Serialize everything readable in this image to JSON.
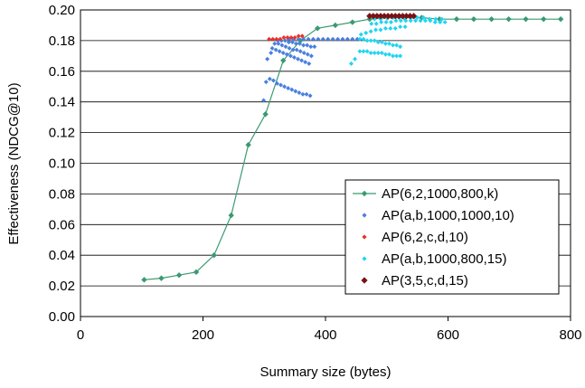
{
  "chart_data": {
    "type": "scatter",
    "xlabel": "Summary size (bytes)",
    "ylabel": "Effectiveness (NDCG@10)",
    "xlim": [
      0,
      800
    ],
    "ylim": [
      0.0,
      0.2
    ],
    "x_ticks": [
      "0",
      "200",
      "400",
      "600",
      "800"
    ],
    "y_ticks": [
      "0.00",
      "0.02",
      "0.04",
      "0.06",
      "0.08",
      "0.10",
      "0.12",
      "0.14",
      "0.16",
      "0.18",
      "0.20"
    ],
    "grid": "horizontal",
    "legend_position": "bottom-right",
    "series": [
      {
        "name": "AP(6,2,1000,800,k)",
        "mark": "line-diamond",
        "color": "#3a9a72",
        "points": [
          [
            104,
            0.024
          ],
          [
            132,
            0.025
          ],
          [
            161,
            0.027
          ],
          [
            189,
            0.029
          ],
          [
            218,
            0.04
          ],
          [
            246,
            0.066
          ],
          [
            274,
            0.112
          ],
          [
            302,
            0.132
          ],
          [
            331,
            0.167
          ],
          [
            359,
            0.18
          ],
          [
            387,
            0.188
          ],
          [
            416,
            0.19
          ],
          [
            444,
            0.192
          ],
          [
            472,
            0.194
          ],
          [
            501,
            0.195
          ],
          [
            529,
            0.195
          ],
          [
            557,
            0.195
          ],
          [
            586,
            0.194
          ],
          [
            614,
            0.194
          ],
          [
            642,
            0.194
          ],
          [
            671,
            0.194
          ],
          [
            699,
            0.194
          ],
          [
            727,
            0.194
          ],
          [
            756,
            0.194
          ],
          [
            784,
            0.194
          ]
        ]
      },
      {
        "name": "AP(a,b,1000,1000,10)",
        "mark": "diamond",
        "color": "#4a7fe0",
        "points": [
          [
            299,
            0.141
          ],
          [
            303,
            0.153
          ],
          [
            309,
            0.155
          ],
          [
            315,
            0.154
          ],
          [
            321,
            0.152
          ],
          [
            327,
            0.151
          ],
          [
            333,
            0.15
          ],
          [
            339,
            0.149
          ],
          [
            345,
            0.148
          ],
          [
            351,
            0.147
          ],
          [
            357,
            0.146
          ],
          [
            363,
            0.145
          ],
          [
            369,
            0.145
          ],
          [
            375,
            0.144
          ],
          [
            305,
            0.168
          ],
          [
            313,
            0.175
          ],
          [
            319,
            0.174
          ],
          [
            325,
            0.173
          ],
          [
            331,
            0.172
          ],
          [
            337,
            0.171
          ],
          [
            343,
            0.17
          ],
          [
            349,
            0.169
          ],
          [
            355,
            0.168
          ],
          [
            361,
            0.167
          ],
          [
            367,
            0.166
          ],
          [
            373,
            0.165
          ],
          [
            311,
            0.172
          ],
          [
            317,
            0.178
          ],
          [
            323,
            0.178
          ],
          [
            329,
            0.177
          ],
          [
            335,
            0.176
          ],
          [
            341,
            0.175
          ],
          [
            347,
            0.174
          ],
          [
            353,
            0.174
          ],
          [
            359,
            0.173
          ],
          [
            365,
            0.172
          ],
          [
            371,
            0.171
          ],
          [
            377,
            0.17
          ],
          [
            322,
            0.18
          ],
          [
            328,
            0.18
          ],
          [
            334,
            0.18
          ],
          [
            340,
            0.179
          ],
          [
            346,
            0.179
          ],
          [
            352,
            0.178
          ],
          [
            358,
            0.178
          ],
          [
            364,
            0.177
          ],
          [
            370,
            0.177
          ],
          [
            376,
            0.176
          ],
          [
            382,
            0.176
          ],
          [
            340,
            0.181
          ],
          [
            348,
            0.181
          ],
          [
            356,
            0.181
          ],
          [
            364,
            0.181
          ],
          [
            372,
            0.181
          ],
          [
            380,
            0.181
          ],
          [
            388,
            0.181
          ],
          [
            396,
            0.181
          ],
          [
            404,
            0.181
          ],
          [
            412,
            0.181
          ],
          [
            420,
            0.181
          ],
          [
            428,
            0.181
          ],
          [
            436,
            0.181
          ],
          [
            444,
            0.181
          ],
          [
            452,
            0.181
          ]
        ]
      },
      {
        "name": "AP(6,2,c,d,10)",
        "mark": "diamond",
        "color": "#e8332a",
        "points": [
          [
            308,
            0.181
          ],
          [
            314,
            0.181
          ],
          [
            320,
            0.181
          ],
          [
            326,
            0.181
          ],
          [
            332,
            0.182
          ],
          [
            338,
            0.182
          ],
          [
            344,
            0.182
          ],
          [
            350,
            0.182
          ],
          [
            356,
            0.183
          ],
          [
            362,
            0.183
          ]
        ]
      },
      {
        "name": "AP(a,b,1000,800,15)",
        "mark": "diamond",
        "color": "#22d4f2",
        "points": [
          [
            442,
            0.165
          ],
          [
            448,
            0.168
          ],
          [
            456,
            0.173
          ],
          [
            462,
            0.173
          ],
          [
            468,
            0.173
          ],
          [
            474,
            0.172
          ],
          [
            480,
            0.172
          ],
          [
            486,
            0.172
          ],
          [
            492,
            0.172
          ],
          [
            498,
            0.171
          ],
          [
            504,
            0.171
          ],
          [
            510,
            0.17
          ],
          [
            516,
            0.17
          ],
          [
            522,
            0.17
          ],
          [
            456,
            0.181
          ],
          [
            462,
            0.181
          ],
          [
            468,
            0.18
          ],
          [
            474,
            0.18
          ],
          [
            480,
            0.18
          ],
          [
            486,
            0.179
          ],
          [
            492,
            0.179
          ],
          [
            498,
            0.178
          ],
          [
            504,
            0.178
          ],
          [
            510,
            0.177
          ],
          [
            516,
            0.177
          ],
          [
            522,
            0.176
          ],
          [
            458,
            0.184
          ],
          [
            466,
            0.185
          ],
          [
            474,
            0.186
          ],
          [
            482,
            0.187
          ],
          [
            490,
            0.187
          ],
          [
            498,
            0.188
          ],
          [
            506,
            0.188
          ],
          [
            514,
            0.188
          ],
          [
            522,
            0.189
          ],
          [
            530,
            0.189
          ],
          [
            475,
            0.191
          ],
          [
            483,
            0.191
          ],
          [
            491,
            0.192
          ],
          [
            499,
            0.192
          ],
          [
            507,
            0.192
          ],
          [
            515,
            0.193
          ],
          [
            523,
            0.193
          ],
          [
            531,
            0.193
          ],
          [
            539,
            0.193
          ],
          [
            547,
            0.193
          ],
          [
            555,
            0.193
          ],
          [
            563,
            0.193
          ],
          [
            571,
            0.193
          ],
          [
            579,
            0.192
          ],
          [
            587,
            0.192
          ],
          [
            595,
            0.192
          ],
          [
            480,
            0.194
          ],
          [
            490,
            0.194
          ],
          [
            500,
            0.195
          ],
          [
            510,
            0.195
          ],
          [
            520,
            0.195
          ],
          [
            530,
            0.195
          ],
          [
            540,
            0.195
          ],
          [
            550,
            0.195
          ],
          [
            560,
            0.195
          ],
          [
            570,
            0.194
          ],
          [
            580,
            0.194
          ],
          [
            590,
            0.194
          ]
        ]
      },
      {
        "name": "AP(3,5,c,d,15)",
        "mark": "diamond",
        "color": "#7a1212",
        "points": [
          [
            472,
            0.196
          ],
          [
            478,
            0.196
          ],
          [
            484,
            0.196
          ],
          [
            490,
            0.196
          ],
          [
            496,
            0.196
          ],
          [
            502,
            0.196
          ],
          [
            508,
            0.196
          ],
          [
            514,
            0.196
          ],
          [
            520,
            0.196
          ],
          [
            526,
            0.196
          ],
          [
            532,
            0.196
          ],
          [
            538,
            0.196
          ],
          [
            544,
            0.196
          ]
        ]
      }
    ]
  }
}
